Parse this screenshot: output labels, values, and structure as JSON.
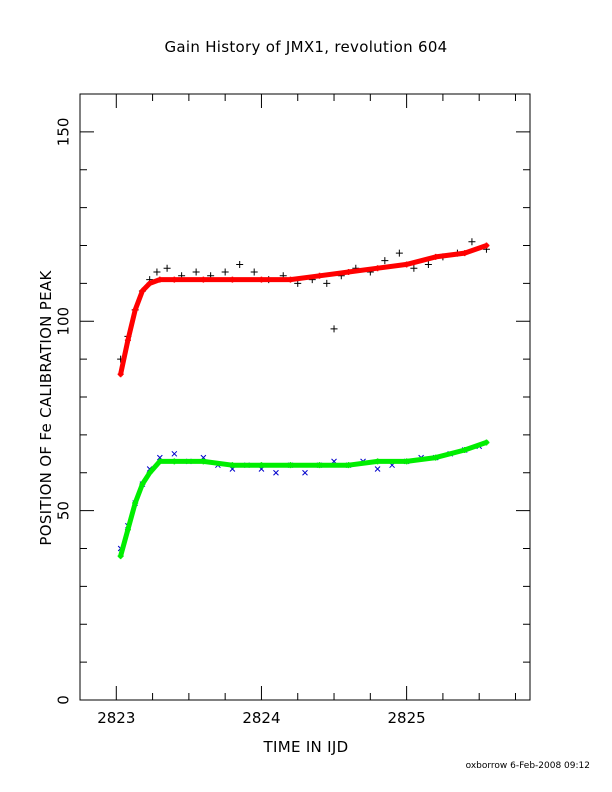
{
  "chart_data": {
    "type": "scatter",
    "title": "Gain History of JMX1, revolution 604",
    "xlabel": "TIME IN IJD",
    "ylabel": "POSITION OF Fe CALIBRATION PEAK",
    "xlim": [
      2822.75,
      2825.85
    ],
    "ylim": [
      0,
      160
    ],
    "xticks": [
      2823,
      2824,
      2825
    ],
    "yticks": [
      0,
      50,
      100,
      150
    ],
    "grid": false,
    "legend": "none",
    "series": [
      {
        "marker": "plus",
        "color": "#000000",
        "x": [
          2823.03,
          2823.08,
          2823.13,
          2823.18,
          2823.23,
          2823.28,
          2823.35,
          2823.45,
          2823.55,
          2823.65,
          2823.75,
          2823.85,
          2823.95,
          2824.05,
          2824.15,
          2824.25,
          2824.35,
          2824.45,
          2824.5,
          2824.55,
          2824.65,
          2824.75,
          2824.85,
          2824.95,
          2825.05,
          2825.15,
          2825.25,
          2825.35,
          2825.45,
          2825.55
        ],
        "y": [
          90,
          96,
          103,
          108,
          111,
          113,
          114,
          112,
          113,
          112,
          113,
          115,
          113,
          111,
          112,
          110,
          111,
          110,
          98,
          112,
          114,
          113,
          116,
          118,
          114,
          115,
          117,
          118,
          121,
          119
        ]
      },
      {
        "marker": "line",
        "color": "#ff0000",
        "x": [
          2823.03,
          2823.08,
          2823.13,
          2823.18,
          2823.23,
          2823.3,
          2823.4,
          2823.6,
          2823.8,
          2824.0,
          2824.2,
          2824.4,
          2824.6,
          2824.8,
          2825.0,
          2825.2,
          2825.4,
          2825.55
        ],
        "y": [
          86,
          95,
          103,
          108,
          110,
          111,
          111,
          111,
          111,
          111,
          111,
          112,
          113,
          114,
          115,
          117,
          118,
          120
        ]
      },
      {
        "marker": "cross",
        "color": "#0000cc",
        "x": [
          2823.03,
          2823.08,
          2823.13,
          2823.18,
          2823.23,
          2823.3,
          2823.4,
          2823.5,
          2823.6,
          2823.7,
          2823.8,
          2823.9,
          2824.0,
          2824.1,
          2824.2,
          2824.3,
          2824.4,
          2824.5,
          2824.6,
          2824.7,
          2824.8,
          2824.9,
          2825.0,
          2825.1,
          2825.2,
          2825.3,
          2825.4,
          2825.5
        ],
        "y": [
          40,
          46,
          52,
          57,
          61,
          64,
          65,
          63,
          64,
          62,
          61,
          62,
          61,
          60,
          62,
          60,
          62,
          63,
          62,
          63,
          61,
          62,
          63,
          64,
          64,
          65,
          66,
          67
        ]
      },
      {
        "marker": "line",
        "color": "#00ee00",
        "x": [
          2823.03,
          2823.08,
          2823.13,
          2823.18,
          2823.23,
          2823.3,
          2823.4,
          2823.6,
          2823.8,
          2824.0,
          2824.2,
          2824.4,
          2824.6,
          2824.8,
          2825.0,
          2825.2,
          2825.4,
          2825.55
        ],
        "y": [
          38,
          45,
          52,
          57,
          60,
          63,
          63,
          63,
          62,
          62,
          62,
          62,
          62,
          63,
          63,
          64,
          66,
          68
        ]
      }
    ]
  },
  "footer": {
    "credit": "oxborrow  6-Feb-2008 09:12"
  }
}
